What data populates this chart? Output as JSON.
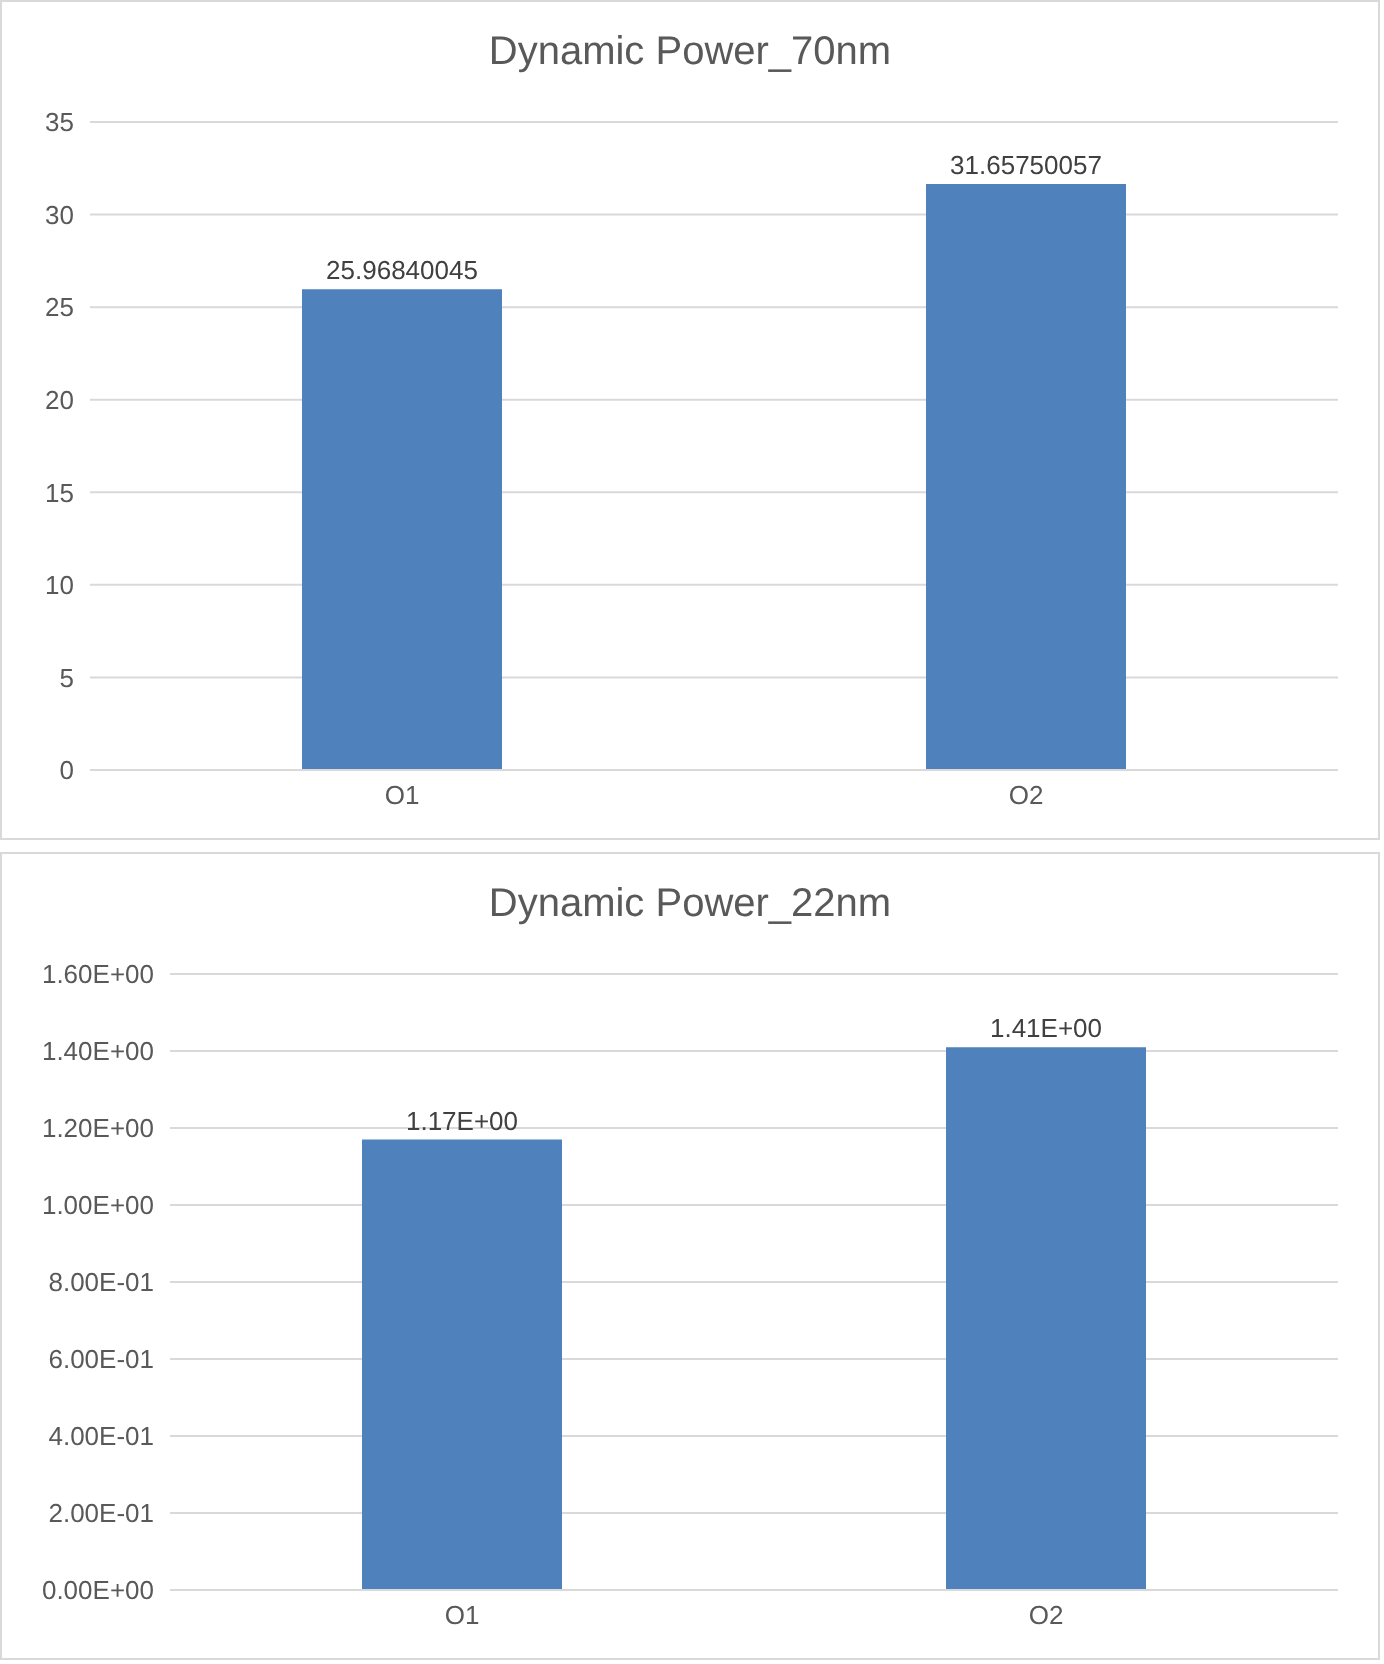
{
  "chart_data": [
    {
      "type": "bar",
      "title": "Dynamic Power_70nm",
      "categories": [
        "O1",
        "O2"
      ],
      "values": [
        25.96840045,
        31.65750057
      ],
      "color": "#4f81bd",
      "ylim": [
        0,
        35
      ],
      "yticks": [
        0,
        5,
        10,
        15,
        20,
        25,
        30,
        35
      ],
      "grid": "y",
      "data_labels": true
    },
    {
      "type": "bar",
      "title": "Dynamic Power_22nm",
      "categories": [
        "O1",
        "O2"
      ],
      "values": [
        1.17,
        1.41
      ],
      "value_labels": [
        "1.17E+00",
        "1.41E+00"
      ],
      "color": "#4f81bd",
      "ylim": [
        0,
        1.6
      ],
      "yticks": [
        {
          "value": 0,
          "label": "0.00E+00"
        },
        {
          "value": 0.2,
          "label": "2.00E-01"
        },
        {
          "value": 0.4,
          "label": "4.00E-01"
        },
        {
          "value": 0.6,
          "label": "6.00E-01"
        },
        {
          "value": 0.8,
          "label": "8.00E-01"
        },
        {
          "value": 1.0,
          "label": "1.00E+00"
        },
        {
          "value": 1.2,
          "label": "1.20E+00"
        },
        {
          "value": 1.4,
          "label": "1.40E+00"
        },
        {
          "value": 1.6,
          "label": "1.60E+00"
        }
      ],
      "grid": "y"
    }
  ]
}
